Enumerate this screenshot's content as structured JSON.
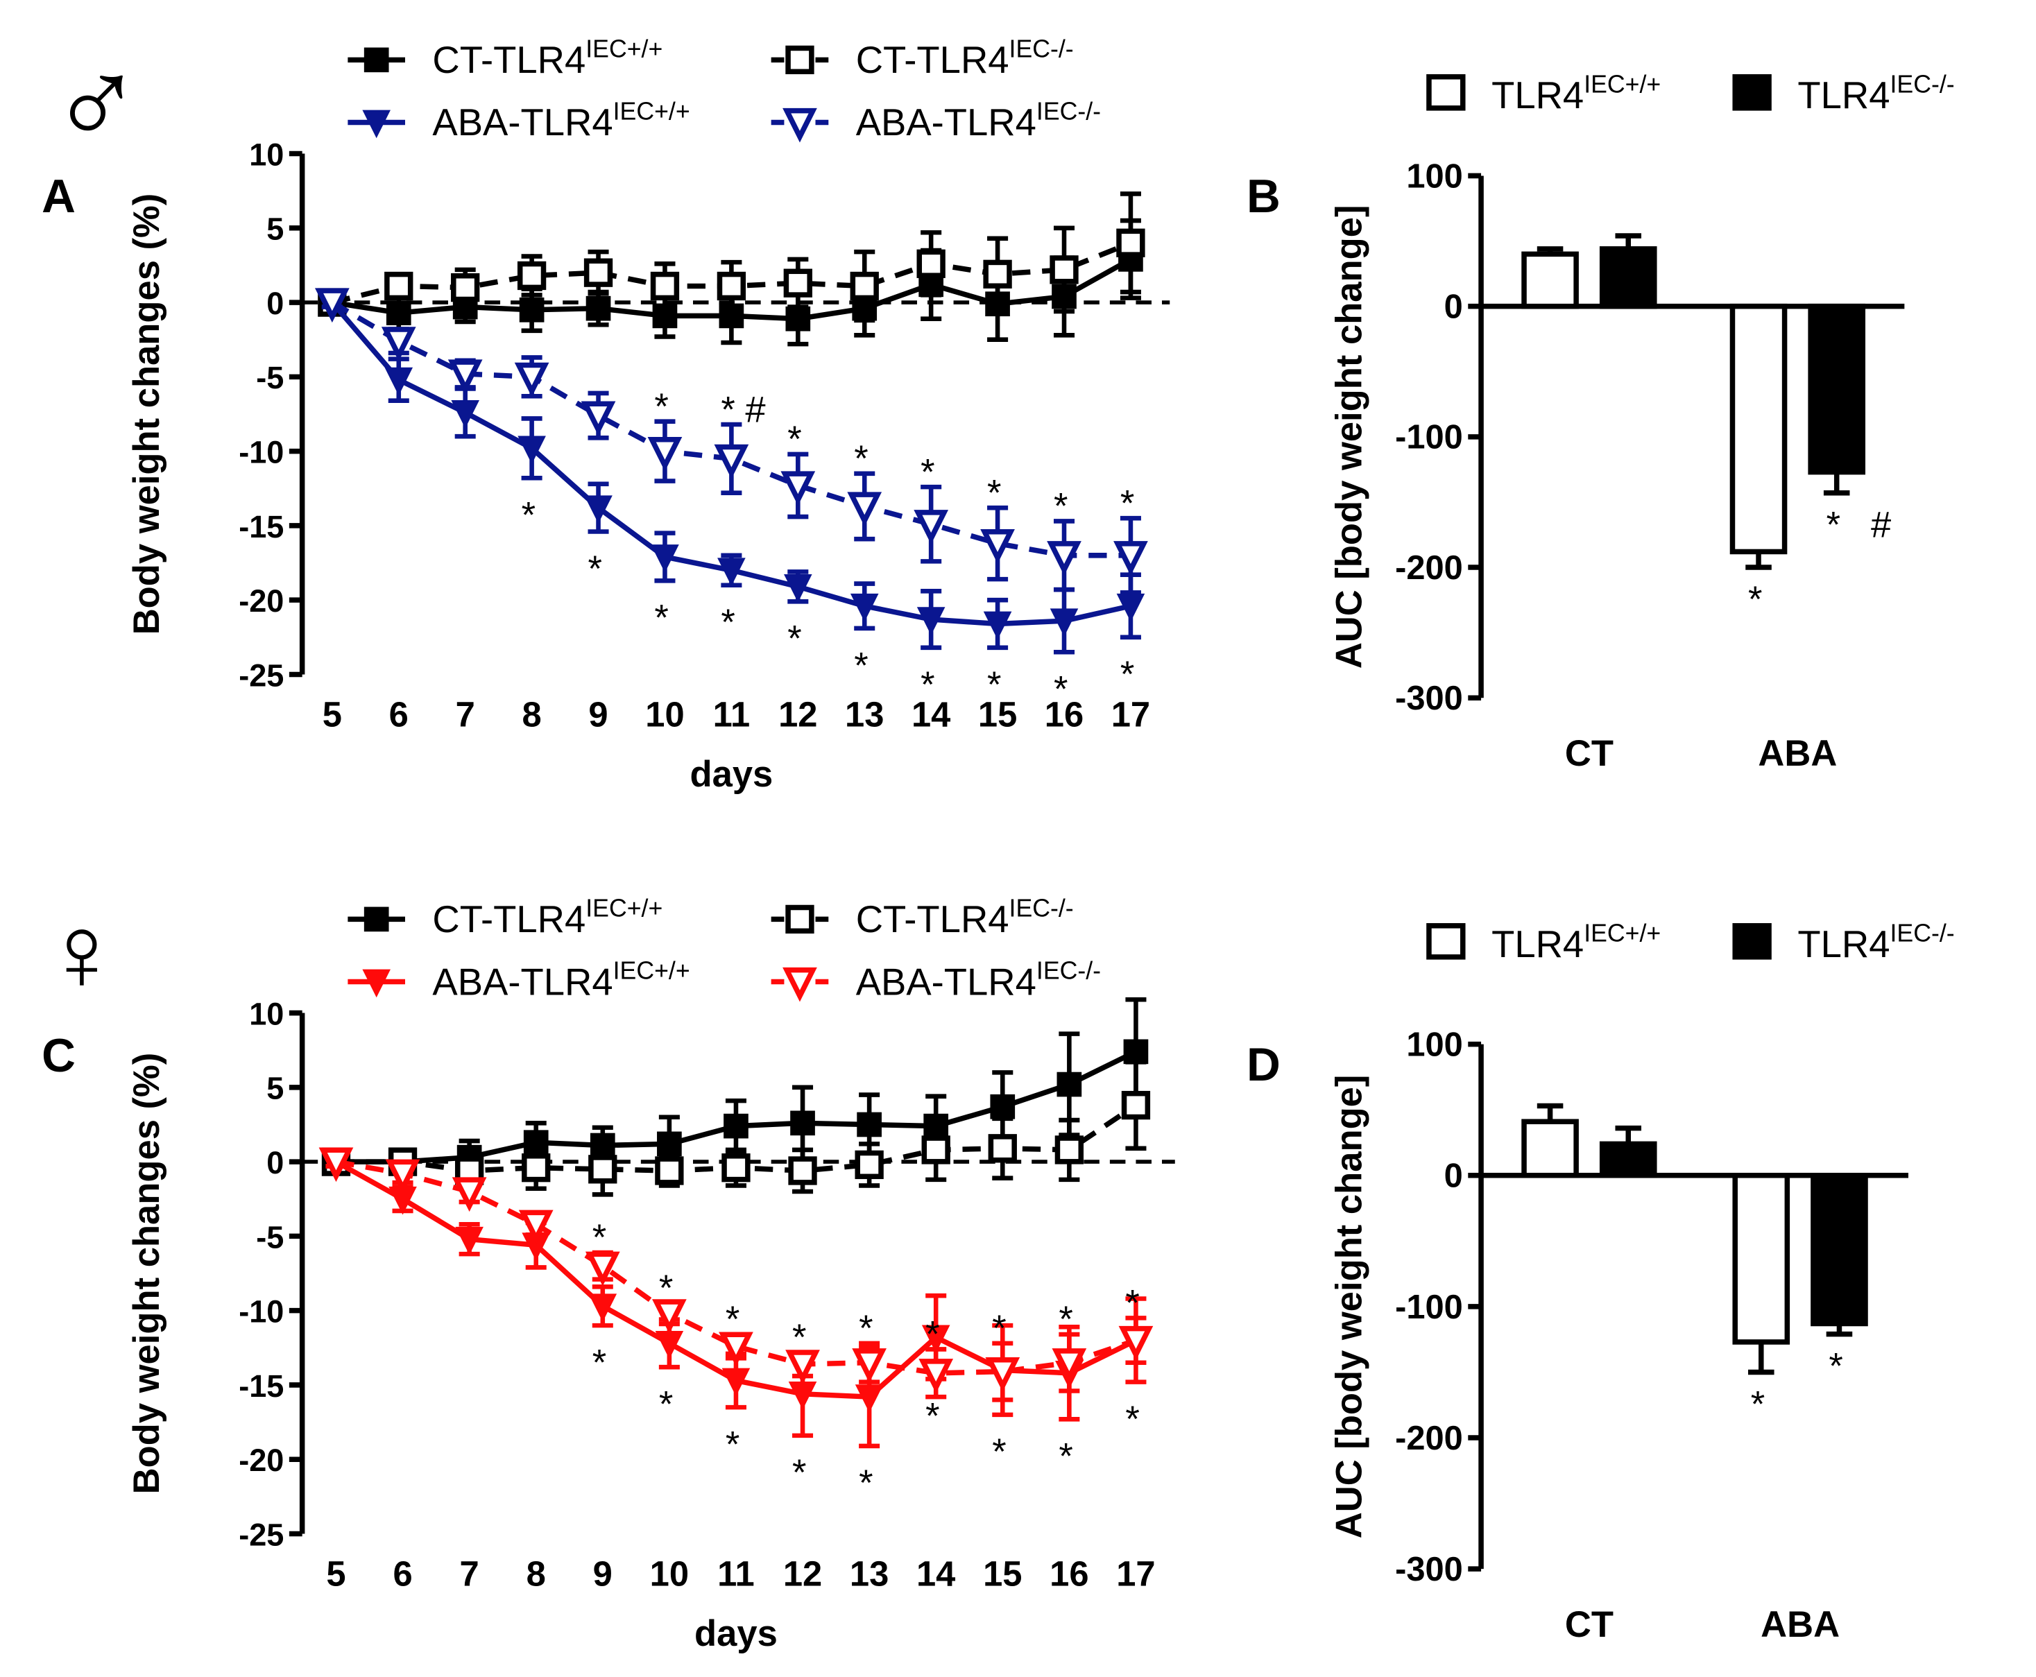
{
  "symbols": {
    "male": "♂",
    "female": "♀"
  },
  "colors": {
    "black": "#000000",
    "navy": "#0a1690",
    "red": "#ff0a0a"
  },
  "chart_data": [
    {
      "panel": "A",
      "type": "line",
      "sex": "male",
      "xlabel": "days",
      "ylabel": "Body weight changes (%)",
      "x": [
        5,
        6,
        7,
        8,
        9,
        10,
        11,
        12,
        13,
        14,
        15,
        16,
        17
      ],
      "ylim": [
        -25,
        10
      ],
      "yticks": [
        "10",
        "5",
        "0",
        "-5",
        "-10",
        "-15",
        "-20",
        "-25"
      ],
      "legend": [
        {
          "base": "CT-TLR4",
          "sup": "IEC+/+"
        },
        {
          "base": "CT-TLR4",
          "sup": "IEC-/-"
        },
        {
          "base": "ABA-TLR4",
          "sup": "IEC+/+"
        },
        {
          "base": "ABA-TLR4",
          "sup": "IEC-/-"
        }
      ],
      "series": [
        {
          "name": "CT-TLR4 IEC+/+",
          "color": "#000000",
          "marker": "square-filled",
          "dashed": false,
          "values": [
            0,
            -0.7,
            -0.3,
            -0.5,
            -0.4,
            -0.9,
            -0.9,
            -1.1,
            -0.4,
            1.2,
            -0.1,
            0.4,
            2.9
          ],
          "err": [
            0.3,
            1.1,
            1.0,
            1.4,
            1.1,
            1.4,
            1.8,
            1.7,
            1.8,
            2.3,
            2.4,
            2.6,
            2.6
          ]
        },
        {
          "name": "CT-TLR4 IEC-/-",
          "color": "#000000",
          "marker": "square-open",
          "dashed": true,
          "values": [
            0,
            1.1,
            1.0,
            1.8,
            2.0,
            1.1,
            1.1,
            1.3,
            1.1,
            2.6,
            1.9,
            2.2,
            4.0
          ],
          "err": [
            0.3,
            0.7,
            1.2,
            1.3,
            1.4,
            1.5,
            1.6,
            1.6,
            2.3,
            2.1,
            2.4,
            2.8,
            3.3
          ]
        },
        {
          "name": "ABA-TLR4 IEC+/+",
          "color": "#0a1690",
          "marker": "triangle-filled",
          "dashed": false,
          "values": [
            0,
            -5.2,
            -7.4,
            -9.8,
            -13.8,
            -17.1,
            -18.0,
            -19.1,
            -20.4,
            -21.3,
            -21.6,
            -21.4,
            -20.4
          ],
          "err": [
            0.3,
            1.4,
            1.6,
            2.0,
            1.6,
            1.6,
            1.0,
            1.0,
            1.5,
            1.9,
            1.6,
            2.1,
            2.1
          ]
        },
        {
          "name": "ABA-TLR4 IEC-/-",
          "color": "#0a1690",
          "marker": "triangle-open",
          "dashed": true,
          "values": [
            0,
            -2.6,
            -4.8,
            -5.0,
            -7.6,
            -10.0,
            -10.5,
            -12.3,
            -13.7,
            -14.9,
            -16.2,
            -17.0,
            -17.0
          ],
          "err": [
            0.3,
            0.8,
            0.9,
            1.3,
            1.5,
            2.0,
            2.3,
            2.1,
            2.2,
            2.5,
            2.4,
            2.3,
            2.5
          ]
        }
      ],
      "annotations": {
        "above": [
          {
            "day": 10,
            "text": "*"
          },
          {
            "day": 11,
            "text": "* #"
          },
          {
            "day": 12,
            "text": "*"
          },
          {
            "day": 13,
            "text": "*"
          },
          {
            "day": 14,
            "text": "*"
          },
          {
            "day": 15,
            "text": "*"
          },
          {
            "day": 16,
            "text": "*"
          },
          {
            "day": 17,
            "text": "*"
          }
        ],
        "below": [
          {
            "day": 8,
            "text": "*"
          },
          {
            "day": 9,
            "text": "*"
          },
          {
            "day": 10,
            "text": "*"
          },
          {
            "day": 11,
            "text": "*"
          },
          {
            "day": 12,
            "text": "*"
          },
          {
            "day": 13,
            "text": "*"
          },
          {
            "day": 14,
            "text": "*"
          },
          {
            "day": 15,
            "text": "*"
          },
          {
            "day": 16,
            "text": "*"
          },
          {
            "day": 17,
            "text": "*"
          }
        ]
      }
    },
    {
      "panel": "B",
      "type": "bar",
      "ylabel": "AUC [body weight change]",
      "categories": [
        "CT",
        "ABA"
      ],
      "ylim": [
        -300,
        100
      ],
      "yticks": [
        "100",
        "0",
        "-100",
        "-200",
        "-300"
      ],
      "legend": [
        {
          "base": "TLR4",
          "sup": "IEC+/+"
        },
        {
          "base": "TLR4",
          "sup": "IEC-/-"
        }
      ],
      "series": [
        {
          "name": "TLR4 IEC+/+",
          "fill": "open",
          "values": [
            40,
            -188
          ],
          "err": [
            4,
            12
          ]
        },
        {
          "name": "TLR4 IEC-/-",
          "fill": "filled",
          "values": [
            44,
            -127
          ],
          "err": [
            10,
            16
          ]
        }
      ],
      "annotations": [
        {
          "category": "ABA",
          "series": 0,
          "text": "*"
        },
        {
          "category": "ABA",
          "series": 1,
          "text": "*   #"
        }
      ]
    },
    {
      "panel": "C",
      "type": "line",
      "sex": "female",
      "xlabel": "days",
      "ylabel": "Body weight changes (%)",
      "x": [
        5,
        6,
        7,
        8,
        9,
        10,
        11,
        12,
        13,
        14,
        15,
        16,
        17
      ],
      "ylim": [
        -25,
        10
      ],
      "yticks": [
        "10",
        "5",
        "0",
        "-5",
        "-10",
        "-15",
        "-20",
        "-25"
      ],
      "legend": [
        {
          "base": "CT-TLR4",
          "sup": "IEC+/+"
        },
        {
          "base": "CT-TLR4",
          "sup": "IEC-/-"
        },
        {
          "base": "ABA-TLR4",
          "sup": "IEC+/+"
        },
        {
          "base": "ABA-TLR4",
          "sup": "IEC-/-"
        }
      ],
      "series": [
        {
          "name": "CT-TLR4 IEC+/+",
          "color": "#000000",
          "marker": "square-filled",
          "dashed": false,
          "values": [
            0,
            0,
            0.3,
            1.3,
            1.1,
            1.2,
            2.4,
            2.6,
            2.5,
            2.4,
            3.7,
            5.2,
            7.4
          ],
          "err": [
            0.3,
            0.3,
            1.1,
            1.3,
            1.2,
            1.8,
            1.7,
            2.4,
            2.0,
            2.0,
            2.3,
            3.4,
            3.5
          ]
        },
        {
          "name": "CT-TLR4 IEC-/-",
          "color": "#000000",
          "marker": "square-open",
          "dashed": true,
          "values": [
            0,
            0,
            -0.6,
            -0.4,
            -0.5,
            -0.6,
            -0.4,
            -0.6,
            -0.2,
            0.8,
            0.9,
            0.8,
            3.8
          ],
          "err": [
            0.3,
            0.3,
            0.8,
            1.4,
            1.7,
            1.0,
            1.2,
            1.4,
            1.4,
            2.0,
            2.0,
            2.0,
            2.9
          ]
        },
        {
          "name": "ABA-TLR4 IEC+/+",
          "color": "#ff0a0a",
          "marker": "triangle-filled",
          "dashed": false,
          "values": [
            0,
            -2.5,
            -5.2,
            -5.6,
            -9.7,
            -12.2,
            -14.7,
            -15.6,
            -15.8,
            -11.8,
            -14.0,
            -14.2,
            -12.0
          ],
          "err": [
            0.3,
            0.8,
            1.0,
            1.5,
            1.3,
            1.6,
            1.8,
            2.8,
            3.3,
            2.8,
            3.0,
            3.1,
            2.8
          ]
        },
        {
          "name": "ABA-TLR4 IEC-/-",
          "color": "#ff0a0a",
          "marker": "triangle-open",
          "dashed": true,
          "values": [
            0,
            -0.8,
            -2.0,
            -4.2,
            -7.0,
            -10.2,
            -12.4,
            -13.6,
            -13.5,
            -14.2,
            -14.1,
            -13.5,
            -12.0
          ],
          "err": [
            0.3,
            0.6,
            0.7,
            0.7,
            0.9,
            0.7,
            0.8,
            0.8,
            1.3,
            1.6,
            1.9,
            1.9,
            1.5
          ]
        }
      ],
      "annotations": {
        "above": [
          {
            "day": 9,
            "text": "*"
          },
          {
            "day": 10,
            "text": "*"
          },
          {
            "day": 11,
            "text": "*"
          },
          {
            "day": 12,
            "text": "*"
          },
          {
            "day": 13,
            "text": "*"
          },
          {
            "day": 14,
            "text": "*"
          },
          {
            "day": 15,
            "text": "*"
          },
          {
            "day": 16,
            "text": "*"
          },
          {
            "day": 17,
            "text": "*"
          }
        ],
        "below": [
          {
            "day": 9,
            "text": "*"
          },
          {
            "day": 10,
            "text": "*"
          },
          {
            "day": 11,
            "text": "*"
          },
          {
            "day": 12,
            "text": "*"
          },
          {
            "day": 13,
            "text": "*"
          },
          {
            "day": 14,
            "text": "*"
          },
          {
            "day": 15,
            "text": "*"
          },
          {
            "day": 16,
            "text": "*"
          },
          {
            "day": 17,
            "text": "*"
          }
        ]
      }
    },
    {
      "panel": "D",
      "type": "bar",
      "ylabel": "AUC [body weight change]",
      "categories": [
        "CT",
        "ABA"
      ],
      "ylim": [
        -300,
        100
      ],
      "yticks": [
        "100",
        "0",
        "-100",
        "-200",
        "-300"
      ],
      "legend": [
        {
          "base": "TLR4",
          "sup": "IEC+/+"
        },
        {
          "base": "TLR4",
          "sup": "IEC-/-"
        }
      ],
      "series": [
        {
          "name": "TLR4 IEC+/+",
          "fill": "open",
          "values": [
            41,
            -127
          ],
          "err": [
            12,
            23
          ]
        },
        {
          "name": "TLR4 IEC-/-",
          "fill": "filled",
          "values": [
            24,
            -113
          ],
          "err": [
            12,
            8
          ]
        }
      ],
      "annotations": [
        {
          "category": "ABA",
          "series": 0,
          "text": "*"
        },
        {
          "category": "ABA",
          "series": 1,
          "text": "*"
        }
      ]
    }
  ]
}
